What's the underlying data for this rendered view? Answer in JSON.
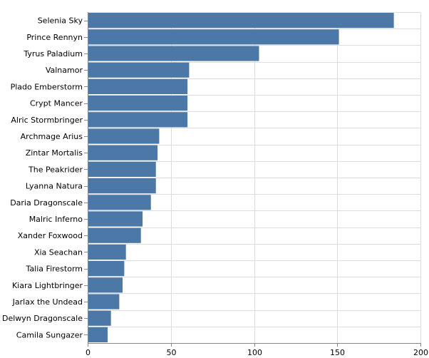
{
  "chart_data": {
    "type": "bar",
    "orientation": "horizontal",
    "categories": [
      "Selenia Sky",
      "Prince Rennyn",
      "Tyrus Paladium",
      "Valnamor",
      "Plado Emberstorm",
      "Crypt Mancer",
      "Alric Stormbringer",
      "Archmage Arius",
      "Zintar Mortalis",
      "The Peakrider",
      "Lyanna Natura",
      "Daria Dragonscale",
      "Malric Inferno",
      "Xander Foxwood",
      "Xia Seachan",
      "Talia Firestorm",
      "Kiara Lightbringer",
      "Jarlax the Undead",
      "Delwyn Dragonscale",
      "Camila Sungazer"
    ],
    "values": [
      184,
      151,
      103,
      61,
      60,
      60,
      60,
      43,
      42,
      41,
      41,
      38,
      33,
      32,
      23,
      22,
      21,
      19,
      14,
      12
    ],
    "xlim": [
      0,
      200
    ],
    "xticks": [
      0,
      50,
      100,
      150,
      200
    ],
    "xtick_labels": [
      "0",
      "50",
      "100",
      "150",
      "200"
    ],
    "grid": true,
    "bar_color": "#4c78a8",
    "title": "",
    "xlabel": "",
    "ylabel": ""
  }
}
